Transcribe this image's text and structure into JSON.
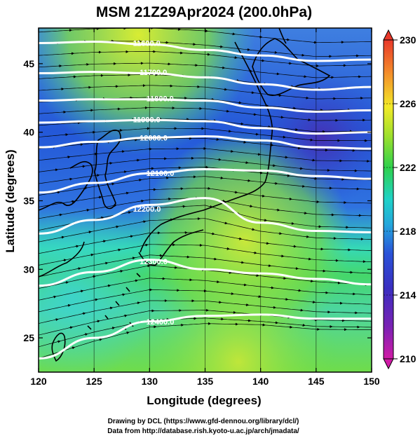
{
  "title": "MSM 21Z29Apr2024 (200.0hPa)",
  "xlabel": "Longitude (degrees)",
  "ylabel": "Latitude  (degrees)",
  "credits": [
    "Drawing by DCL (https://www.gfd-dennou.org/library/dcl/)",
    "Data from http://database.rish.kyoto-u.ac.jp/arch/jmadata/"
  ],
  "chart_data": {
    "type": "heatmap",
    "variable_color": "temperature (K)",
    "xlim": [
      120,
      150
    ],
    "ylim": [
      22.5,
      47.6
    ],
    "xticks": [
      120,
      125,
      130,
      135,
      140,
      145,
      150
    ],
    "yticks": [
      25,
      30,
      35,
      40,
      45
    ],
    "colorbar": {
      "min": 210,
      "max": 230,
      "ticks": [
        210,
        214,
        218,
        222,
        226,
        230
      ],
      "colors": [
        "#d01aa6",
        "#4a2ab8",
        "#2a4fd6",
        "#1fd2c8",
        "#2ed14c",
        "#9fe02c",
        "#f2ea28",
        "#f48a2a",
        "#e8382a"
      ]
    },
    "contours": [
      {
        "label": "11600.0",
        "lat_at": [
          46.5,
          46.6,
          46.4,
          46.0,
          45.6,
          45.2,
          45.3
        ]
      },
      {
        "label": "11700.0",
        "lat_at": [
          44.3,
          44.4,
          44.3,
          44.0,
          43.5,
          43.1,
          43.3
        ]
      },
      {
        "label": "11800.0",
        "lat_at": [
          42.3,
          42.4,
          42.4,
          42.3,
          41.8,
          41.5,
          41.6
        ]
      },
      {
        "label": "11900.0",
        "lat_at": [
          40.7,
          40.8,
          40.9,
          40.8,
          40.3,
          39.9,
          40.0
        ]
      },
      {
        "label": "12000.0",
        "lat_at": [
          38.9,
          39.3,
          39.6,
          39.7,
          39.4,
          38.9,
          38.8
        ]
      },
      {
        "label": "12100.0",
        "lat_at": [
          35.6,
          36.3,
          37.0,
          37.3,
          37.2,
          36.8,
          36.6
        ]
      },
      {
        "label": "12200.0",
        "lat_at": [
          32.6,
          33.6,
          34.7,
          35.2,
          33.4,
          32.8,
          32.7
        ]
      },
      {
        "label": "12300.0",
        "lat_at": [
          28.8,
          29.8,
          30.7,
          30.0,
          29.7,
          29.3,
          28.9
        ]
      },
      {
        "label": "12400.0",
        "lat_at": [
          23.5,
          25.0,
          26.2,
          26.6,
          26.7,
          26.4,
          26.4
        ]
      }
    ]
  }
}
